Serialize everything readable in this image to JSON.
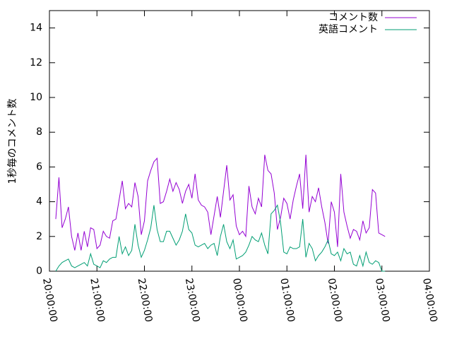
{
  "chart_data": {
    "type": "line",
    "ylabel": "1秒毎のコメント数",
    "x": [
      "20:08:00",
      "20:12:00",
      "20:16:00",
      "20:20:00",
      "20:24:00",
      "20:28:00",
      "20:32:00",
      "20:36:00",
      "20:40:00",
      "20:44:00",
      "20:48:00",
      "20:52:00",
      "20:56:00",
      "21:00:00",
      "21:04:00",
      "21:08:00",
      "21:12:00",
      "21:16:00",
      "21:20:00",
      "21:24:00",
      "21:28:00",
      "21:32:00",
      "21:36:00",
      "21:40:00",
      "21:44:00",
      "21:48:00",
      "21:52:00",
      "21:56:00",
      "22:00:00",
      "22:04:00",
      "22:08:00",
      "22:12:00",
      "22:16:00",
      "22:20:00",
      "22:24:00",
      "22:28:00",
      "22:32:00",
      "22:36:00",
      "22:40:00",
      "22:44:00",
      "22:48:00",
      "22:52:00",
      "22:56:00",
      "23:00:00",
      "23:04:00",
      "23:08:00",
      "23:12:00",
      "23:16:00",
      "23:20:00",
      "23:24:00",
      "23:28:00",
      "23:32:00",
      "23:36:00",
      "23:40:00",
      "23:44:00",
      "23:48:00",
      "23:52:00",
      "23:56:00",
      "00:00:00",
      "00:04:00",
      "00:08:00",
      "00:12:00",
      "00:16:00",
      "00:20:00",
      "00:24:00",
      "00:28:00",
      "00:32:00",
      "00:36:00",
      "00:40:00",
      "00:44:00",
      "00:48:00",
      "00:52:00",
      "00:56:00",
      "01:00:00",
      "01:04:00",
      "01:08:00",
      "01:12:00",
      "01:16:00",
      "01:20:00",
      "01:24:00",
      "01:28:00",
      "01:32:00",
      "01:36:00",
      "01:40:00",
      "01:44:00",
      "01:48:00",
      "01:52:00",
      "01:56:00",
      "02:00:00",
      "02:04:00",
      "02:08:00",
      "02:12:00",
      "02:16:00",
      "02:20:00",
      "02:24:00",
      "02:28:00",
      "02:32:00",
      "02:36:00",
      "02:40:00",
      "02:44:00",
      "02:48:00",
      "02:52:00",
      "02:56:00",
      "03:00:00",
      "03:04:00"
    ],
    "series": [
      {
        "name": "コメント数",
        "color": "#9400d3",
        "values": [
          3.0,
          5.4,
          2.5,
          3.0,
          3.7,
          2.0,
          1.2,
          2.2,
          1.2,
          2.3,
          1.4,
          2.5,
          2.4,
          1.3,
          1.5,
          2.3,
          2.0,
          1.9,
          2.9,
          3.0,
          4.1,
          5.2,
          3.6,
          3.9,
          3.7,
          5.1,
          4.3,
          2.1,
          2.9,
          5.2,
          5.8,
          6.3,
          6.5,
          3.9,
          4.0,
          4.6,
          5.3,
          4.6,
          5.1,
          4.7,
          3.9,
          4.6,
          5.0,
          4.2,
          5.6,
          4.1,
          3.8,
          3.7,
          3.4,
          2.1,
          3.2,
          4.3,
          3.1,
          4.6,
          6.1,
          4.1,
          4.4,
          2.6,
          2.1,
          2.3,
          2.0,
          4.9,
          3.7,
          3.3,
          4.2,
          3.7,
          6.7,
          5.8,
          5.6,
          4.5,
          2.4,
          3.1,
          4.2,
          3.9,
          3.0,
          4.1,
          4.9,
          5.6,
          3.6,
          6.7,
          3.4,
          4.3,
          4.0,
          4.8,
          3.7,
          2.8,
          1.6,
          4.0,
          3.4,
          1.4,
          5.6,
          3.4,
          2.6,
          1.9,
          2.4,
          2.3,
          1.8,
          2.9,
          2.2,
          2.5,
          4.7,
          4.5,
          2.2,
          2.1,
          2.0
        ]
      },
      {
        "name": "英語コメント",
        "color": "#009e73",
        "values": [
          0.0,
          0.3,
          0.5,
          0.6,
          0.7,
          0.3,
          0.2,
          0.3,
          0.4,
          0.5,
          0.3,
          1.0,
          0.4,
          0.3,
          0.2,
          0.6,
          0.5,
          0.7,
          0.8,
          0.8,
          2.0,
          1.0,
          1.4,
          0.9,
          1.2,
          2.7,
          1.5,
          0.8,
          1.2,
          1.8,
          2.5,
          3.8,
          2.4,
          1.7,
          1.7,
          2.3,
          2.3,
          1.9,
          1.5,
          1.8,
          2.3,
          3.3,
          2.4,
          2.2,
          1.5,
          1.4,
          1.5,
          1.6,
          1.3,
          1.5,
          1.6,
          0.9,
          2.0,
          2.7,
          1.7,
          1.3,
          1.8,
          0.7,
          0.8,
          0.9,
          1.1,
          1.5,
          2.0,
          1.8,
          1.7,
          2.2,
          1.5,
          1.0,
          3.3,
          3.5,
          3.8,
          2.8,
          1.1,
          1.0,
          1.4,
          1.3,
          1.3,
          1.4,
          3.0,
          0.8,
          1.6,
          1.3,
          0.6,
          0.9,
          1.1,
          1.4,
          1.8,
          1.0,
          0.9,
          1.1,
          0.6,
          1.3,
          1.0,
          1.1,
          0.4,
          0.3,
          0.9,
          0.3,
          1.1,
          0.5,
          0.4,
          0.6,
          0.5,
          0.0,
          0.0
        ]
      }
    ],
    "xlim": [
      "20:00:00",
      "04:00:00"
    ],
    "xticks": [
      "20:00:00",
      "21:00:00",
      "22:00:00",
      "23:00:00",
      "00:00:00",
      "01:00:00",
      "02:00:00",
      "03:00:00",
      "04:00:00"
    ],
    "ylim": [
      0,
      15
    ],
    "yticks": [
      0,
      2,
      4,
      6,
      8,
      10,
      12,
      14
    ],
    "legend": "top-right"
  }
}
